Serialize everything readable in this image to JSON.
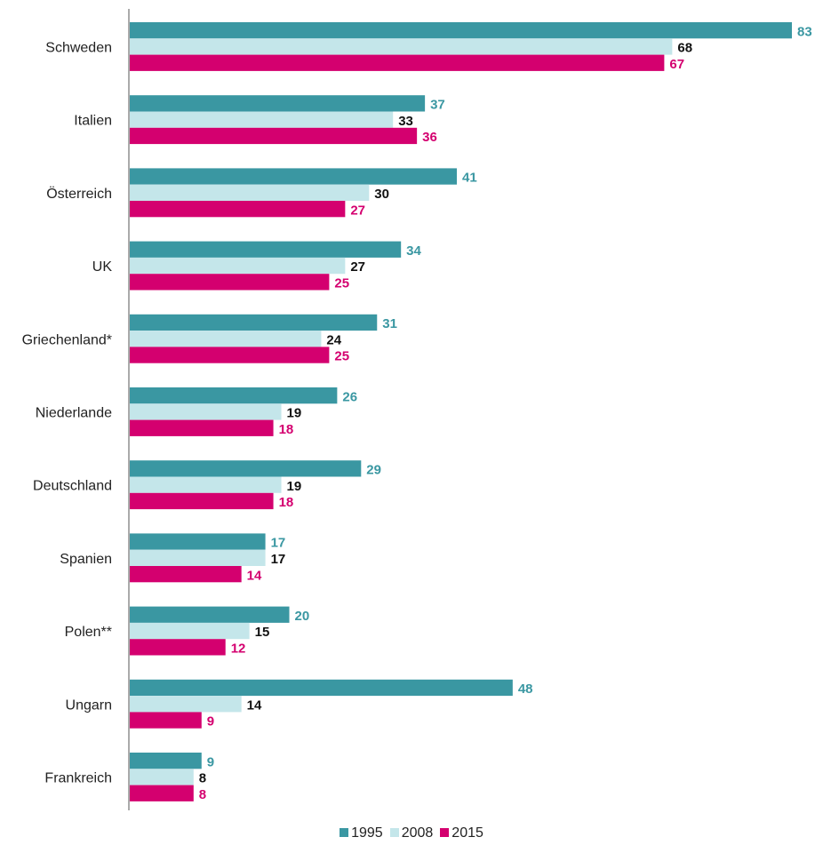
{
  "chart_data": {
    "type": "bar",
    "orientation": "horizontal",
    "title": "",
    "xlabel": "",
    "ylabel": "",
    "xlim": [
      0,
      83
    ],
    "grid": false,
    "legend_position": "bottom",
    "categories": [
      "Schweden",
      "Italien",
      "Österreich",
      "UK",
      "Griechenland*",
      "Niederlande",
      "Deutschland",
      "Spanien",
      "Polen**",
      "Ungarn",
      "Frankreich"
    ],
    "series": [
      {
        "name": "1995",
        "color": "#3a97a2",
        "label_color": "#3a97a2",
        "values": [
          83,
          37,
          41,
          34,
          31,
          26,
          29,
          17,
          20,
          48,
          9
        ]
      },
      {
        "name": "2008",
        "color": "#c4e6ea",
        "label_color": "#111111",
        "values": [
          68,
          33,
          30,
          27,
          24,
          19,
          19,
          17,
          15,
          14,
          8
        ]
      },
      {
        "name": "2015",
        "color": "#d4006f",
        "label_color": "#d4006f",
        "values": [
          67,
          36,
          27,
          25,
          25,
          18,
          18,
          14,
          12,
          9,
          8
        ]
      }
    ]
  }
}
